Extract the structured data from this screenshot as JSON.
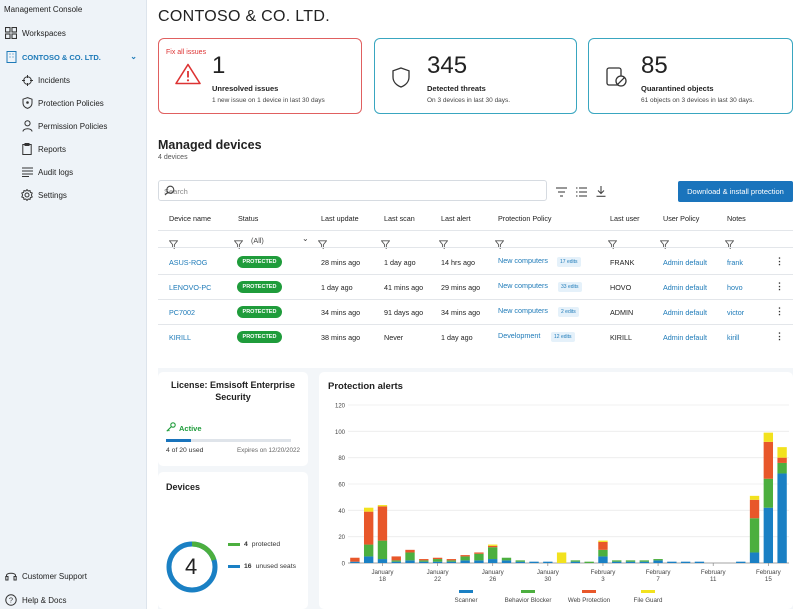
{
  "sidebar": {
    "title": "Management Console",
    "workspaces": "Workspaces",
    "org": "CONTOSO & CO. LTD.",
    "items": [
      {
        "label": "Incidents",
        "icon": "crosshair-icon"
      },
      {
        "label": "Protection Policies",
        "icon": "shield-icon"
      },
      {
        "label": "Permission Policies",
        "icon": "user-icon"
      },
      {
        "label": "Reports",
        "icon": "clipboard-icon"
      },
      {
        "label": "Audit logs",
        "icon": "list-icon"
      },
      {
        "label": "Settings",
        "icon": "gear-icon"
      }
    ],
    "support": "Customer Support",
    "help": "Help & Docs"
  },
  "page": {
    "title": "CONTOSO & CO. LTD."
  },
  "cards": {
    "issues": {
      "fix": "Fix all issues",
      "count": "1",
      "label": "Unresolved issues",
      "sub": "1 new issue on 1 device in last 30 days"
    },
    "threats": {
      "count": "345",
      "label": "Detected threats",
      "sub": "On 3 devices in last 30 days."
    },
    "quarantine": {
      "count": "85",
      "label": "Quarantined objects",
      "sub": "61 objects on 3 devices in last 30 days."
    }
  },
  "devices_section": {
    "title": "Managed devices",
    "count": "4 devices",
    "search_placeholder": "Search",
    "install_button": "Download & install protection",
    "status_filter": "(All)",
    "columns": [
      "Device name",
      "Status",
      "Last update",
      "Last scan",
      "Last alert",
      "Protection Policy",
      "Last user",
      "User Policy",
      "Notes"
    ],
    "rows": [
      {
        "name": "ASUS-ROG",
        "status": "PROTECTED",
        "last_update": "28 mins ago",
        "last_scan": "1 day ago",
        "last_alert": "14 hrs ago",
        "policy": "New computers",
        "edits": "17 edits",
        "user": "FRANK",
        "user_policy": "Admin default",
        "notes": "frank"
      },
      {
        "name": "LENOVO-PC",
        "status": "PROTECTED",
        "last_update": "1 day ago",
        "last_scan": "41 mins ago",
        "last_alert": "29 mins ago",
        "policy": "New computers",
        "edits": "33 edits",
        "user": "HOVO",
        "user_policy": "Admin default",
        "notes": "hovo"
      },
      {
        "name": "PC7002",
        "status": "PROTECTED",
        "last_update": "34 mins ago",
        "last_scan": "91 days ago",
        "last_alert": "34 mins ago",
        "policy": "New computers",
        "edits": "2 edits",
        "user": "ADMIN",
        "user_policy": "Admin default",
        "notes": "victor"
      },
      {
        "name": "KIRILL",
        "status": "PROTECTED",
        "last_update": "38 mins ago",
        "last_scan": "Never",
        "last_alert": "1 day ago",
        "policy": "Development",
        "edits": "12 edits",
        "user": "KIRILL",
        "user_policy": "Admin default",
        "notes": "kirill"
      }
    ]
  },
  "license": {
    "title": "License: Emsisoft Enterprise Security",
    "status": "Active",
    "used": "4 of 20 used",
    "used_fraction": 0.2,
    "expires": "Expires on 12/20/2022"
  },
  "devices_panel": {
    "title": "Devices",
    "total": "4",
    "protected_count": "4",
    "protected_label": "protected",
    "unused_count": "16",
    "unused_label": "unused seats",
    "protected_fraction": 0.2
  },
  "colors": {
    "scanner": "#1a80c4",
    "behavior": "#4caf3f",
    "web": "#e8572a",
    "fileguard": "#f2e21e",
    "accent": "#1a74bc",
    "protected": "#1f9c3b"
  },
  "chart_data": {
    "type": "bar",
    "title": "Protection alerts",
    "stacked": true,
    "ylim": [
      0,
      120
    ],
    "yticks": [
      0,
      20,
      40,
      60,
      80,
      100,
      120
    ],
    "x_tick_labels": [
      {
        "label": "January 18",
        "index": 2
      },
      {
        "label": "January 22",
        "index": 6
      },
      {
        "label": "January 26",
        "index": 10
      },
      {
        "label": "January 30",
        "index": 14
      },
      {
        "label": "February 3",
        "index": 18
      },
      {
        "label": "February 7",
        "index": 22
      },
      {
        "label": "February 11",
        "index": 26
      },
      {
        "label": "February 15",
        "index": 30
      }
    ],
    "categories": [
      "Jan 16",
      "Jan 17",
      "Jan 18",
      "Jan 19",
      "Jan 20",
      "Jan 21",
      "Jan 22",
      "Jan 23",
      "Jan 24",
      "Jan 25",
      "Jan 26",
      "Jan 27",
      "Jan 28",
      "Jan 29",
      "Jan 30",
      "Jan 31",
      "Feb 1",
      "Feb 2",
      "Feb 3",
      "Feb 4",
      "Feb 5",
      "Feb 6",
      "Feb 7",
      "Feb 8",
      "Feb 9",
      "Feb 10",
      "Feb 11",
      "Feb 12",
      "Feb 13",
      "Feb 14",
      "Feb 15",
      "Feb 16"
    ],
    "series": [
      {
        "name": "Scanner",
        "values": [
          1,
          5,
          3,
          1,
          2,
          1,
          1,
          1,
          2,
          2,
          3,
          2,
          1,
          1,
          1,
          0,
          1,
          0,
          5,
          1,
          1,
          1,
          2,
          1,
          1,
          1,
          0,
          0,
          1,
          8,
          42,
          68
        ]
      },
      {
        "name": "Behavior Blocker",
        "values": [
          0,
          9,
          14,
          1,
          6,
          1,
          2,
          1,
          3,
          5,
          9,
          2,
          1,
          0,
          0,
          0,
          1,
          1,
          5,
          1,
          1,
          1,
          1,
          0,
          0,
          0,
          0,
          0,
          0,
          26,
          22,
          8
        ]
      },
      {
        "name": "Web Protection",
        "values": [
          3,
          25,
          26,
          3,
          2,
          1,
          1,
          1,
          1,
          1,
          1,
          0,
          0,
          0,
          0,
          0,
          0,
          0,
          6,
          0,
          0,
          0,
          0,
          0,
          0,
          0,
          0,
          0,
          0,
          14,
          28,
          4
        ]
      },
      {
        "name": "File Guard",
        "values": [
          0,
          3,
          1,
          0,
          0,
          0,
          0,
          0,
          0,
          0,
          1,
          0,
          0,
          0,
          0,
          8,
          0,
          0,
          1,
          0,
          0,
          0,
          0,
          0,
          0,
          0,
          0,
          0,
          0,
          3,
          7,
          8
        ]
      }
    ]
  }
}
